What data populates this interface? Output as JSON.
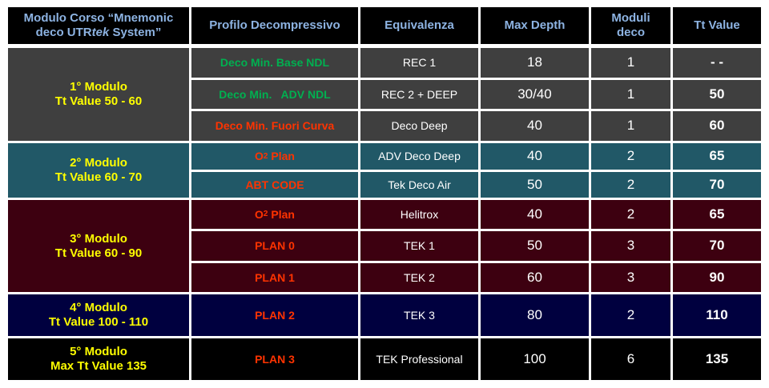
{
  "headers": {
    "course_line1": "Modulo Corso “Mnemonic",
    "course_line2_a": "deco UTR",
    "course_line2_b": "tek",
    "course_line2_c": " System”",
    "profilo": "Profilo Decompressivo",
    "equivalenza": "Equivalenza",
    "max_depth": "Max Depth",
    "moduli_line1": "Moduli",
    "moduli_line2": "deco",
    "tt_value": "Tt Value"
  },
  "modules": [
    {
      "name": "1° Modulo",
      "range": "Tt Value 50 - 60"
    },
    {
      "name": "2° Modulo",
      "range": "Tt Value 60 - 70"
    },
    {
      "name": "3° Modulo",
      "range": "Tt Value 60 - 90"
    },
    {
      "name": "4° Modulo",
      "range": "Tt Value 100 - 110"
    },
    {
      "name": "5° Modulo",
      "range": "Max Tt Value 135"
    }
  ],
  "rows": [
    {
      "profile": "Deco Min. Base NDL",
      "profile_color": "#00b050",
      "equivalenza": "REC 1",
      "max_depth": "18",
      "moduli": "1",
      "tt": "- -"
    },
    {
      "profile": "Deco Min.   ADV NDL",
      "profile_color": "#00b050",
      "equivalenza": "REC 2 + DEEP",
      "max_depth": "30/40",
      "moduli": "1",
      "tt": "50"
    },
    {
      "profile": "Deco Min. Fuori Curva",
      "profile_color": "#ff3300",
      "equivalenza": "Deco Deep",
      "max_depth": "40",
      "moduli": "1",
      "tt": "60"
    },
    {
      "profile": "O",
      "profile_sub": "2",
      "profile_rest": " Plan",
      "profile_color": "#ff3300",
      "equivalenza": "ADV Deco Deep",
      "max_depth": "40",
      "moduli": "2",
      "tt": "65"
    },
    {
      "profile": "ABT CODE",
      "profile_color": "#ff3300",
      "equivalenza": "Tek Deco Air",
      "max_depth": "50",
      "moduli": "2",
      "tt": "70"
    },
    {
      "profile": "O",
      "profile_sub": "2",
      "profile_rest": " Plan",
      "profile_color": "#ff3300",
      "equivalenza": "Helitrox",
      "max_depth": "40",
      "moduli": "2",
      "tt": "65"
    },
    {
      "profile": "PLAN 0",
      "profile_color": "#ff3300",
      "equivalenza": "TEK 1",
      "max_depth": "50",
      "moduli": "3",
      "tt": "70"
    },
    {
      "profile": "PLAN 1",
      "profile_color": "#ff3300",
      "equivalenza": "TEK 2",
      "max_depth": "60",
      "moduli": "3",
      "tt": "90"
    },
    {
      "profile": "PLAN 2",
      "profile_color": "#ff3300",
      "equivalenza": "TEK 3",
      "max_depth": "80",
      "moduli": "2",
      "tt": "110"
    },
    {
      "profile": "PLAN 3",
      "profile_color": "#ff3300",
      "equivalenza": "TEK Professional",
      "max_depth": "100",
      "moduli": "6",
      "tt": "135"
    }
  ]
}
